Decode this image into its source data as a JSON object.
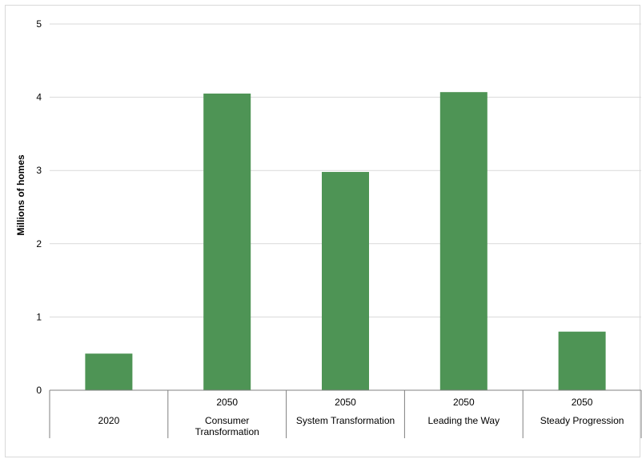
{
  "chart_data": {
    "type": "bar",
    "title": "",
    "xlabel": "",
    "ylabel": "Millions of homes",
    "ylim": [
      0,
      5
    ],
    "yticks": [
      "0",
      "1",
      "2",
      "3",
      "4",
      "5"
    ],
    "grid": true,
    "legend": "none",
    "categories": [
      {
        "group": "",
        "name": "2020"
      },
      {
        "group": "2050",
        "name": "Consumer Transformation"
      },
      {
        "group": "2050",
        "name": "System Transformation"
      },
      {
        "group": "2050",
        "name": "Leading the Way"
      },
      {
        "group": "2050",
        "name": "Steady Progression"
      }
    ],
    "values": [
      0.5,
      4.05,
      2.98,
      4.07,
      0.8
    ],
    "colors": {
      "bar": "#4e9455",
      "grid": "#d9d9d9",
      "axis": "#808080"
    }
  }
}
